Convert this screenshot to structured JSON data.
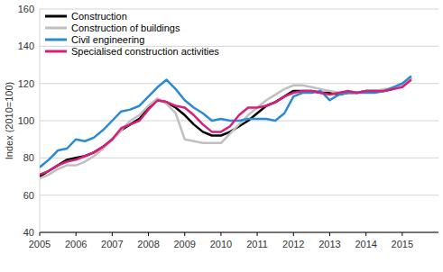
{
  "chart_data": {
    "type": "line",
    "y_label": "Index (2010=100)",
    "x": [
      2005,
      2005.25,
      2005.5,
      2005.75,
      2006,
      2006.25,
      2006.5,
      2006.75,
      2007,
      2007.25,
      2007.5,
      2007.75,
      2008,
      2008.25,
      2008.5,
      2008.75,
      2009,
      2009.25,
      2009.5,
      2009.75,
      2010,
      2010.25,
      2010.5,
      2010.75,
      2011,
      2011.25,
      2011.5,
      2011.75,
      2012,
      2012.25,
      2012.5,
      2012.75,
      2013,
      2013.25,
      2013.5,
      2013.75,
      2014,
      2014.25,
      2014.5,
      2014.75,
      2015,
      2015.25
    ],
    "series": [
      {
        "name": "Construction",
        "color": "#000000",
        "values": [
          70,
          73,
          76,
          79,
          80,
          81,
          83,
          86,
          90,
          95,
          98,
          101,
          107,
          111,
          110,
          107,
          103,
          98,
          94,
          92,
          92,
          94,
          97,
          100,
          104,
          108,
          110,
          113,
          116,
          116,
          116,
          115,
          115,
          114,
          115,
          115,
          116,
          116,
          116,
          117,
          119,
          123
        ]
      },
      {
        "name": "Construction of buildings",
        "color": "#c0c0c0",
        "values": [
          69,
          71,
          74,
          76,
          76,
          78,
          81,
          85,
          90,
          95,
          100,
          103,
          108,
          112,
          109,
          104,
          90,
          89,
          88,
          88,
          88,
          93,
          98,
          103,
          107,
          111,
          114,
          117,
          119,
          119,
          118,
          117,
          116,
          115,
          115,
          115,
          116,
          116,
          117,
          117,
          119,
          123
        ]
      },
      {
        "name": "Civil engineering",
        "color": "#2a8ad4",
        "values": [
          75,
          79,
          84,
          85,
          90,
          89,
          91,
          95,
          100,
          105,
          106,
          108,
          113,
          118,
          122,
          117,
          111,
          107,
          104,
          100,
          101,
          100,
          100,
          101,
          101,
          101,
          100,
          104,
          113,
          115,
          115,
          116,
          111,
          114,
          115,
          115,
          115,
          115,
          116,
          118,
          120,
          124
        ]
      },
      {
        "name": "Specialised construction activities",
        "color": "#d91e7a",
        "values": [
          71,
          73,
          76,
          78,
          79,
          81,
          83,
          86,
          90,
          96,
          98,
          100,
          106,
          111,
          110,
          108,
          107,
          103,
          98,
          94,
          94,
          97,
          103,
          107,
          107,
          108,
          110,
          113,
          115,
          116,
          116,
          115,
          114,
          115,
          116,
          115,
          116,
          116,
          116,
          117,
          118,
          122
        ]
      }
    ],
    "xlim": [
      2005,
      2016
    ],
    "xticks": [
      2005,
      2006,
      2007,
      2008,
      2009,
      2010,
      2011,
      2012,
      2013,
      2014,
      2015
    ],
    "ylim": [
      40,
      160
    ],
    "yticks": [
      40,
      60,
      80,
      100,
      120,
      140,
      160
    ],
    "grid": true,
    "legend": "upper left"
  }
}
